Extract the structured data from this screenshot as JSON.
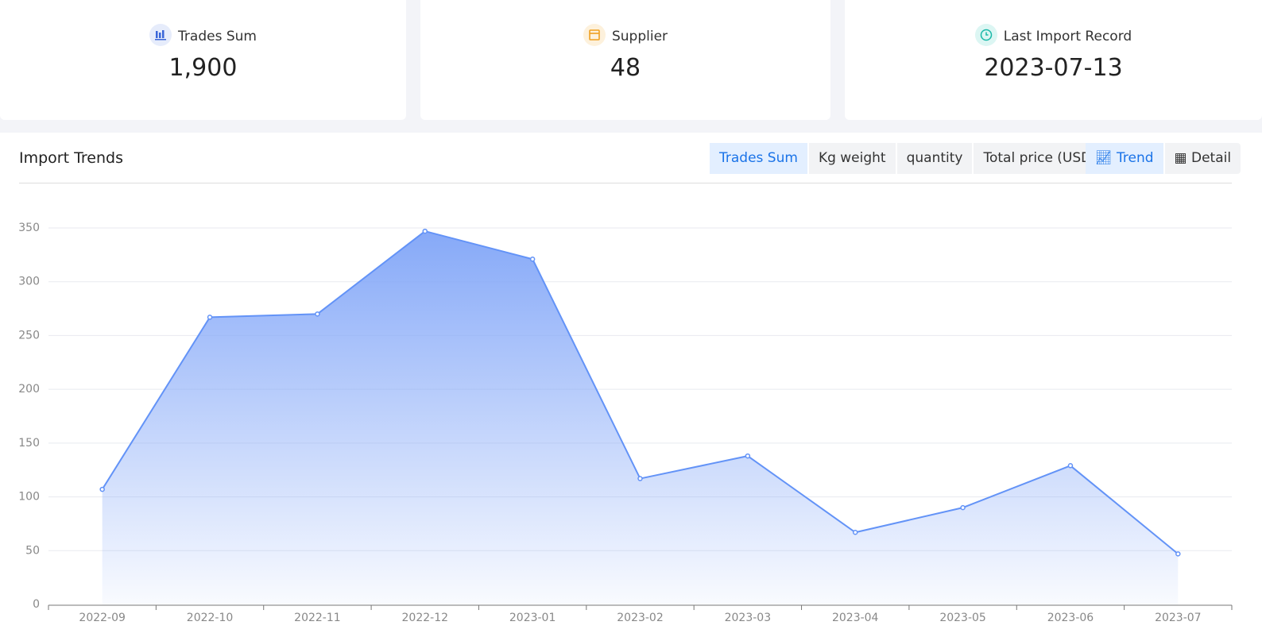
{
  "cards": [
    {
      "label": "Trades Sum",
      "value": "1,900"
    },
    {
      "label": "Supplier",
      "value": "48"
    },
    {
      "label": "Last Import Record",
      "value": "2023-07-13"
    }
  ],
  "panel": {
    "title": "Import Trends",
    "tabs": [
      "Trades Sum",
      "Kg weight",
      "quantity",
      "Total price (USD)"
    ],
    "views": [
      "Trend",
      "Detail"
    ]
  },
  "chart_data": {
    "type": "area",
    "categories": [
      "2022-09",
      "2022-10",
      "2022-11",
      "2022-12",
      "2023-01",
      "2023-02",
      "2023-03",
      "2023-04",
      "2023-05",
      "2023-06",
      "2023-07"
    ],
    "values": [
      107,
      267,
      270,
      347,
      321,
      117,
      138,
      67,
      90,
      129,
      47
    ],
    "color": "#6393f7",
    "ylim": [
      0,
      350
    ],
    "yticks": [
      0,
      50,
      100,
      150,
      200,
      250,
      300,
      350
    ],
    "grid": true
  }
}
